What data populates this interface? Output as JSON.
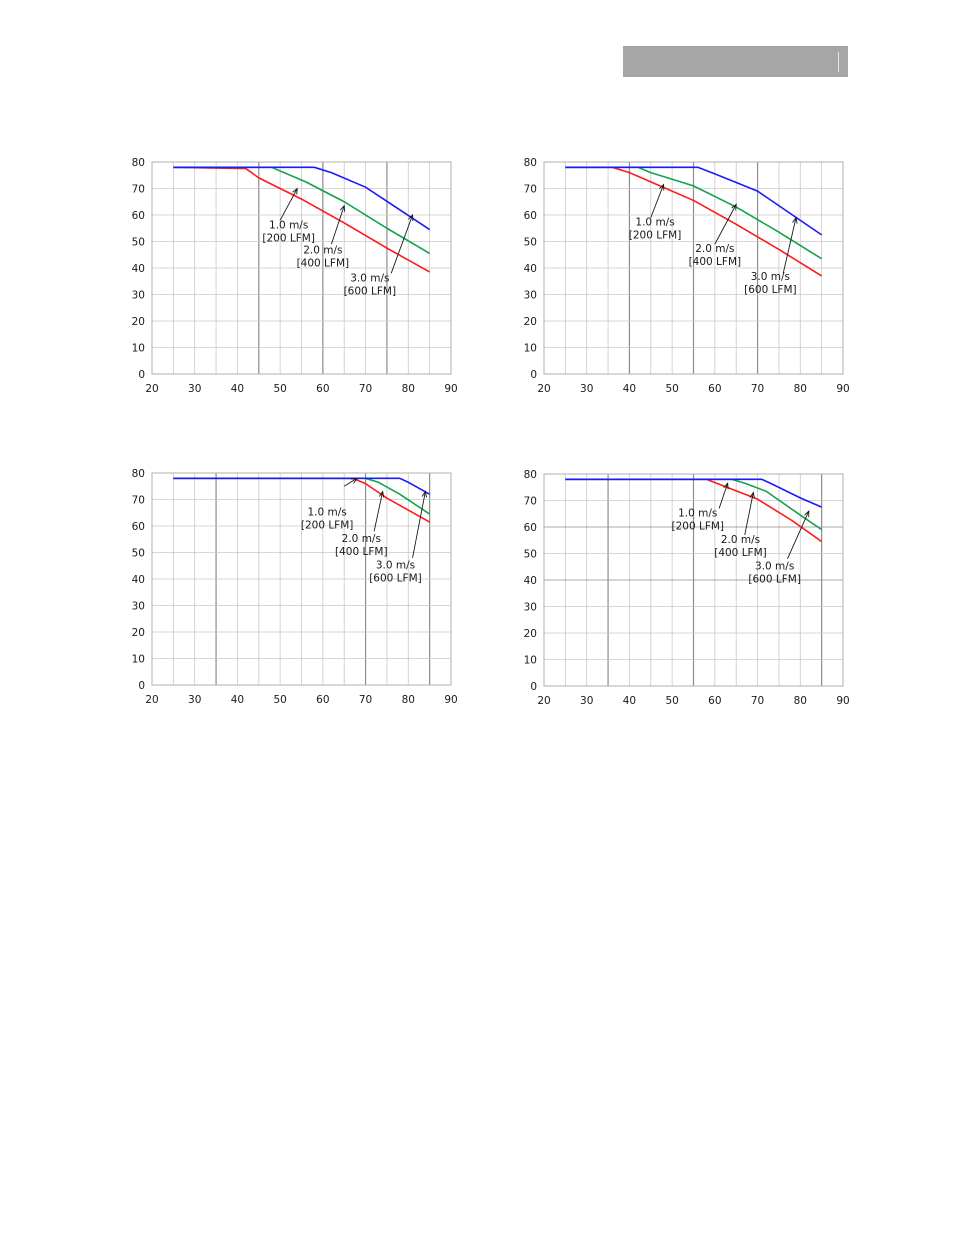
{
  "colors": {
    "series_1ms": "#ff1a1a",
    "series_2ms": "#11a34a",
    "series_3ms": "#1a1aff",
    "grid": "#c8c8c8",
    "grid_major": "#8c8c8c",
    "header_bar": "#a6a6a6"
  },
  "chart_data": [
    {
      "type": "line",
      "xlim": [
        20,
        90
      ],
      "ylim": [
        0,
        80
      ],
      "xticks": [
        "20",
        "30",
        "40",
        "50",
        "60",
        "70",
        "80",
        "90"
      ],
      "yticks": [
        "0",
        "10",
        "20",
        "30",
        "40",
        "50",
        "60",
        "70",
        "80"
      ],
      "grid": true,
      "series": [
        {
          "name": "1.0 m/s [200 LFM]",
          "color": "#ff1a1a",
          "x": [
            25,
            42,
            45,
            55,
            65,
            75,
            85
          ],
          "y": [
            78,
            77.5,
            74,
            66,
            57,
            47.5,
            38.5
          ]
        },
        {
          "name": "2.0 m/s [400 LFM]",
          "color": "#11a34a",
          "x": [
            25,
            48,
            56,
            65,
            75,
            85
          ],
          "y": [
            78,
            78,
            72.5,
            65,
            55,
            45.5
          ]
        },
        {
          "name": "3.0 m/s [600 LFM]",
          "color": "#1a1aff",
          "x": [
            25,
            58,
            62,
            70,
            85
          ],
          "y": [
            78,
            78,
            76,
            70.5,
            54.5
          ]
        }
      ],
      "annotations": [
        {
          "line1": "1.0 m/s",
          "line2": "[200 LFM]"
        },
        {
          "line1": "2.0 m/s",
          "line2": "[400 LFM]"
        },
        {
          "line1": "3.0 m/s",
          "line2": "[600 LFM]"
        }
      ]
    },
    {
      "type": "line",
      "xlim": [
        20,
        90
      ],
      "ylim": [
        0,
        80
      ],
      "xticks": [
        "20",
        "30",
        "40",
        "50",
        "60",
        "70",
        "80",
        "90"
      ],
      "yticks": [
        "0",
        "10",
        "20",
        "30",
        "40",
        "50",
        "60",
        "70",
        "80"
      ],
      "grid": true,
      "series": [
        {
          "name": "1.0 m/s [200 LFM]",
          "color": "#ff1a1a",
          "x": [
            25,
            36,
            40,
            45,
            55,
            65,
            75,
            85
          ],
          "y": [
            78,
            78,
            76,
            72.5,
            65.5,
            56.5,
            47,
            37
          ]
        },
        {
          "name": "2.0 m/s [400 LFM]",
          "color": "#11a34a",
          "x": [
            25,
            42,
            45,
            55,
            65,
            75,
            85
          ],
          "y": [
            78,
            78,
            76,
            71,
            63,
            53.5,
            43.5
          ]
        },
        {
          "name": "3.0 m/s [600 LFM]",
          "color": "#1a1aff",
          "x": [
            25,
            56,
            60,
            70,
            85
          ],
          "y": [
            78,
            78,
            75.5,
            69,
            52.5
          ]
        }
      ],
      "annotations": [
        {
          "line1": "1.0 m/s",
          "line2": "[200 LFM]"
        },
        {
          "line1": "2.0 m/s",
          "line2": "[400 LFM]"
        },
        {
          "line1": "3.0 m/s",
          "line2": "[600 LFM]"
        }
      ]
    },
    {
      "type": "line",
      "xlim": [
        20,
        90
      ],
      "ylim": [
        0,
        80
      ],
      "xticks": [
        "20",
        "30",
        "40",
        "50",
        "60",
        "70",
        "80",
        "90"
      ],
      "yticks": [
        "0",
        "10",
        "20",
        "30",
        "40",
        "50",
        "60",
        "70",
        "80"
      ],
      "grid": true,
      "series": [
        {
          "name": "1.0 m/s [200 LFM]",
          "color": "#ff1a1a",
          "x": [
            25,
            67,
            70,
            75,
            85
          ],
          "y": [
            78,
            78,
            76,
            70.5,
            61.5
          ]
        },
        {
          "name": "2.0 m/s [400 LFM]",
          "color": "#11a34a",
          "x": [
            25,
            70,
            73,
            78,
            85
          ],
          "y": [
            78,
            78,
            76.5,
            72,
            64.5
          ]
        },
        {
          "name": "3.0 m/s [600 LFM]",
          "color": "#1a1aff",
          "x": [
            25,
            78,
            80,
            85
          ],
          "y": [
            78,
            78,
            76.5,
            72
          ]
        }
      ],
      "annotations": [
        {
          "line1": "1.0 m/s",
          "line2": "[200 LFM]"
        },
        {
          "line1": "2.0 m/s",
          "line2": "[400 LFM]"
        },
        {
          "line1": "3.0 m/s",
          "line2": "[600 LFM]"
        }
      ]
    },
    {
      "type": "line",
      "xlim": [
        20,
        90
      ],
      "ylim": [
        0,
        80
      ],
      "xticks": [
        "20",
        "30",
        "40",
        "50",
        "60",
        "70",
        "80",
        "90"
      ],
      "yticks": [
        "0",
        "10",
        "20",
        "30",
        "40",
        "50",
        "60",
        "70",
        "80"
      ],
      "grid": true,
      "series": [
        {
          "name": "1.0 m/s [200 LFM]",
          "color": "#ff1a1a",
          "x": [
            25,
            58,
            62,
            70,
            78,
            85
          ],
          "y": [
            78,
            78,
            75.5,
            70.5,
            62.5,
            54.5
          ]
        },
        {
          "name": "2.0 m/s [400 LFM]",
          "color": "#11a34a",
          "x": [
            25,
            64,
            67,
            72,
            80,
            85
          ],
          "y": [
            78,
            78,
            76.5,
            73.5,
            64.5,
            59
          ]
        },
        {
          "name": "3.0 m/s [600 LFM]",
          "color": "#1a1aff",
          "x": [
            25,
            71,
            73,
            80,
            85
          ],
          "y": [
            78,
            78,
            76.5,
            71,
            67.5
          ]
        }
      ],
      "annotations": [
        {
          "line1": "1.0 m/s",
          "line2": "[200 LFM]"
        },
        {
          "line1": "2.0 m/s",
          "line2": "[400 LFM]"
        },
        {
          "line1": "3.0 m/s",
          "line2": "[600 LFM]"
        }
      ]
    }
  ]
}
